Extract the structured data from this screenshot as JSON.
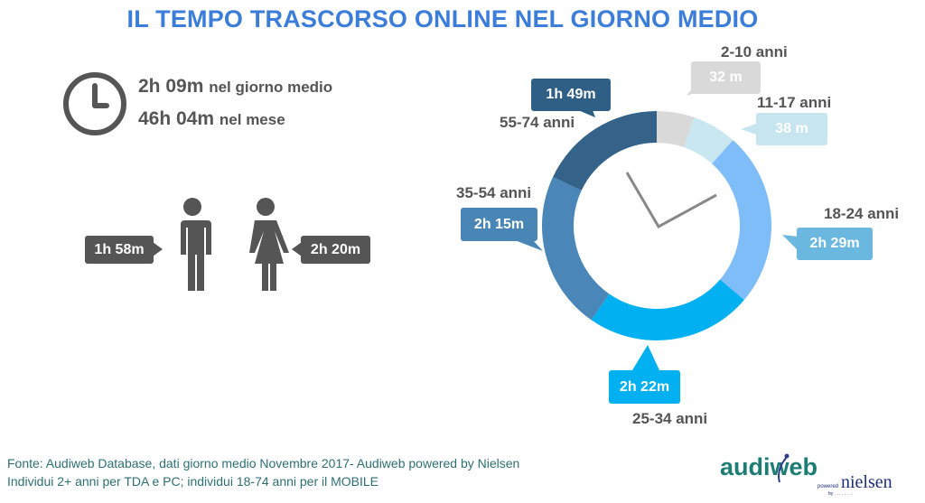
{
  "title": "IL TEMPO TRASCORSO ONLINE NEL GIORNO MEDIO",
  "summary": {
    "daily_value": "2h 09m",
    "daily_label": "nel giorno medio",
    "monthly_value": "46h 04m",
    "monthly_label": "nel mese",
    "icon": "clock-icon"
  },
  "gender": {
    "male": {
      "value": "1h 58m",
      "icon": "male-figure-icon"
    },
    "female": {
      "value": "2h 20m",
      "icon": "female-figure-icon"
    }
  },
  "chart_data": {
    "type": "pie",
    "variant": "donut",
    "unit": "minutes",
    "categories": [
      "2-10 anni",
      "11-17 anni",
      "18-24 anni",
      "25-34 anni",
      "35-54 anni",
      "55-74 anni"
    ],
    "labels": [
      "32 m",
      "38 m",
      "2h 29m",
      "2h 22m",
      "2h 15m",
      "1h 49m"
    ],
    "values": [
      32,
      38,
      149,
      142,
      135,
      109
    ],
    "colors": [
      "#d9d9d9",
      "#c9e7f0",
      "#7fbdf8",
      "#00b0f0",
      "#4a86b8",
      "#356289"
    ],
    "bubble_colors": [
      "#d9d9d9",
      "#c7e5ee",
      "#6ab8e0",
      "#00b0f0",
      "#4a86b5",
      "#2f5f85"
    ]
  },
  "footer": {
    "line1": "Fonte: Audiweb Database, dati giorno medio Novembre 2017- Audiweb powered by Nielsen",
    "line2": "Individui 2+ anni per TDA e PC; individui 18-74 anni per il MOBILE"
  },
  "logo": {
    "brand": "audiweb",
    "powered": "powered by",
    "partner": "nielsen"
  }
}
